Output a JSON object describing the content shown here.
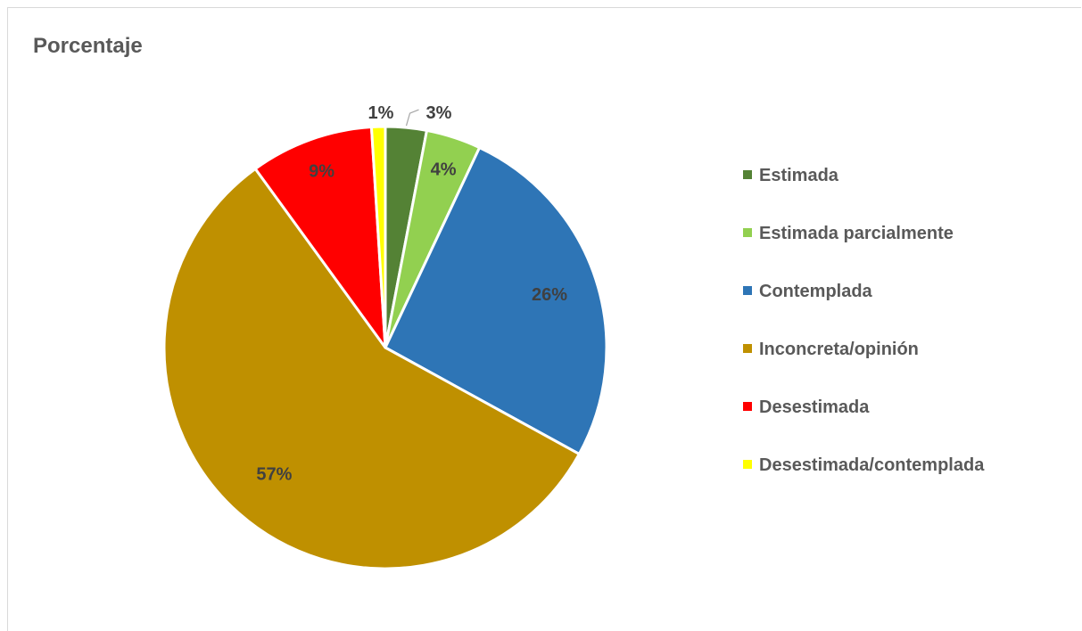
{
  "chart_data": {
    "type": "pie",
    "title": "Porcentaje",
    "legend_position": "right",
    "slices": [
      {
        "name": "Estimada",
        "value": 3,
        "label": "3%",
        "color": "#548235"
      },
      {
        "name": "Estimada parcialmente",
        "value": 4,
        "label": "4%",
        "color": "#92d050"
      },
      {
        "name": "Contemplada",
        "value": 26,
        "label": "26%",
        "color": "#2e75b6"
      },
      {
        "name": "Inconcreta/opinión",
        "value": 57,
        "label": "57%",
        "color": "#bf9000"
      },
      {
        "name": "Desestimada",
        "value": 9,
        "label": "9%",
        "color": "#ff0000"
      },
      {
        "name": "Desestimada/contemplada",
        "value": 1,
        "label": "1%",
        "color": "#ffff00"
      }
    ]
  }
}
